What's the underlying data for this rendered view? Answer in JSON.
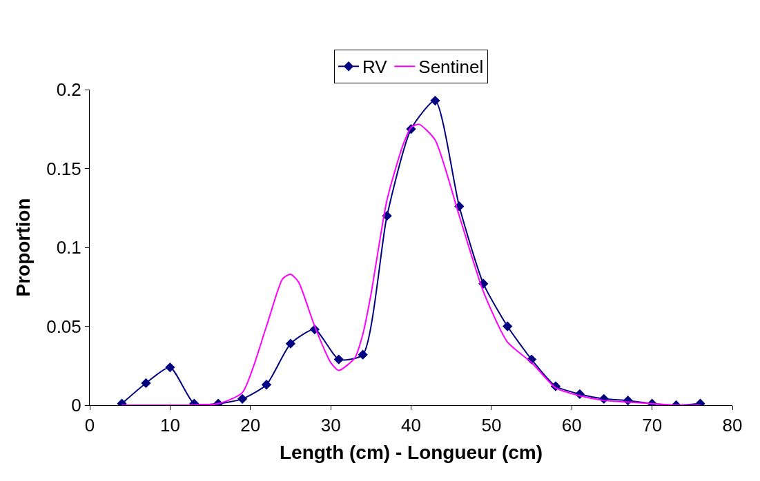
{
  "chart_data": {
    "type": "line",
    "xlabel": "Length (cm) - Longueur (cm)",
    "ylabel": "Proportion",
    "xlim": [
      0,
      80
    ],
    "xticks": [
      0,
      10,
      20,
      30,
      40,
      50,
      60,
      70,
      80
    ],
    "ylim": [
      0,
      0.2
    ],
    "yticks": [
      0,
      0.05,
      0.1,
      0.15,
      0.2
    ],
    "legend": "top",
    "series": [
      {
        "name": "RV",
        "color": "#000080",
        "marker": "diamond",
        "x": [
          4,
          7,
          10,
          13,
          16,
          19,
          22,
          25,
          28,
          31,
          34,
          37,
          40,
          43,
          46,
          49,
          52,
          55,
          58,
          61,
          64,
          67,
          70,
          73,
          76
        ],
        "values": [
          0.001,
          0.014,
          0.024,
          0.001,
          0.001,
          0.004,
          0.013,
          0.039,
          0.048,
          0.029,
          0.032,
          0.12,
          0.175,
          0.193,
          0.126,
          0.077,
          0.05,
          0.029,
          0.012,
          0.007,
          0.004,
          0.003,
          0.001,
          0.0,
          0.001
        ]
      },
      {
        "name": "Sentinel",
        "color": "#ff00ff",
        "marker": "none",
        "x": [
          4,
          10,
          16,
          19,
          22,
          24,
          25,
          26,
          28,
          30,
          31,
          33,
          34,
          35,
          37,
          39,
          40,
          41,
          43,
          46,
          49,
          52,
          55,
          58,
          61,
          64,
          67,
          70,
          73,
          76
        ],
        "values": [
          0,
          0,
          0.001,
          0.008,
          0.05,
          0.08,
          0.083,
          0.078,
          0.05,
          0.027,
          0.022,
          0.03,
          0.045,
          0.07,
          0.13,
          0.165,
          0.176,
          0.178,
          0.168,
          0.12,
          0.072,
          0.04,
          0.027,
          0.011,
          0.006,
          0.003,
          0.002,
          0.001,
          0.0,
          0.0
        ]
      }
    ]
  }
}
